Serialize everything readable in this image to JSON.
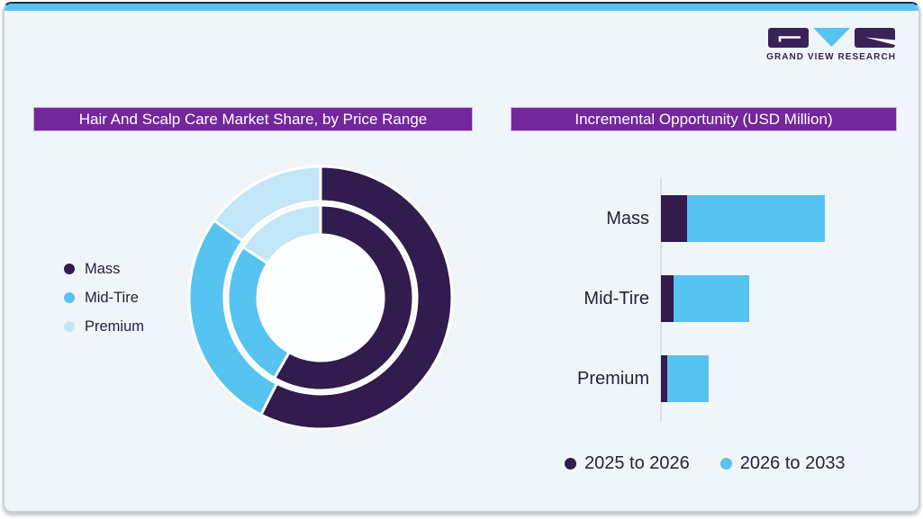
{
  "brand": {
    "logo_text": "GRAND VIEW RESEARCH",
    "logo_purple": "#3a2156",
    "logo_blue": "#57c3f0"
  },
  "palette": {
    "card_bg": "#eff5f9",
    "top_bar_blue": "#57c2ef",
    "banner_purple": "#72279d",
    "mass_dark_purple": "#321b4d",
    "mid_tire_sky_blue": "#57c3f0",
    "premium_light_blue": "#c2e6f7",
    "text_dark": "#23233a",
    "axis_gray": "#d9dee3"
  },
  "left_panel": {
    "title": "Hair And Scalp Care Market Share, by Price Range",
    "legend": [
      {
        "label": "Mass",
        "color": "#321b4d"
      },
      {
        "label": "Mid-Tire",
        "color": "#57c3f0"
      },
      {
        "label": "Premium",
        "color": "#c2e6f7"
      }
    ]
  },
  "right_panel": {
    "title": "Incremental Opportunity (USD Million)",
    "legend": [
      {
        "label": "2025 to 2026",
        "color": "#321b4d"
      },
      {
        "label": "2026 to 2033",
        "color": "#57c3f0"
      }
    ]
  },
  "chart_data": [
    {
      "type": "pie",
      "variant": "double-ring-donut",
      "title": "Hair And Scalp Care Market Share, by Price Range",
      "categories": [
        "Mass",
        "Mid-Tire",
        "Premium"
      ],
      "series": [
        {
          "name": "outer-ring",
          "values_pct": [
            57.5,
            27.5,
            15.0
          ]
        },
        {
          "name": "inner-ring",
          "values_pct": [
            58.3,
            25.9,
            15.8
          ]
        }
      ],
      "colors": [
        "#321b4d",
        "#57c3f0",
        "#c2e6f7"
      ],
      "start_angle_deg": 0,
      "direction": "clockwise",
      "legend_position": "left",
      "data_labels": false,
      "note": "No numeric labels shown in figure; ring shares estimated from arc angles."
    },
    {
      "type": "bar",
      "orientation": "horizontal",
      "stacked": true,
      "title": "Incremental Opportunity (USD Million)",
      "categories": [
        "Mass",
        "Mid-Tire",
        "Premium"
      ],
      "series": [
        {
          "name": "2025 to 2026",
          "color": "#321b4d",
          "values": [
            29,
            14,
            7
          ]
        },
        {
          "name": "2026 to 2033",
          "color": "#57c3f0",
          "values": [
            153,
            84,
            46
          ]
        }
      ],
      "value_axis_visible": false,
      "legend_position": "bottom",
      "note": "Value axis unlabeled in figure; values are relative units estimated from bar lengths."
    }
  ]
}
